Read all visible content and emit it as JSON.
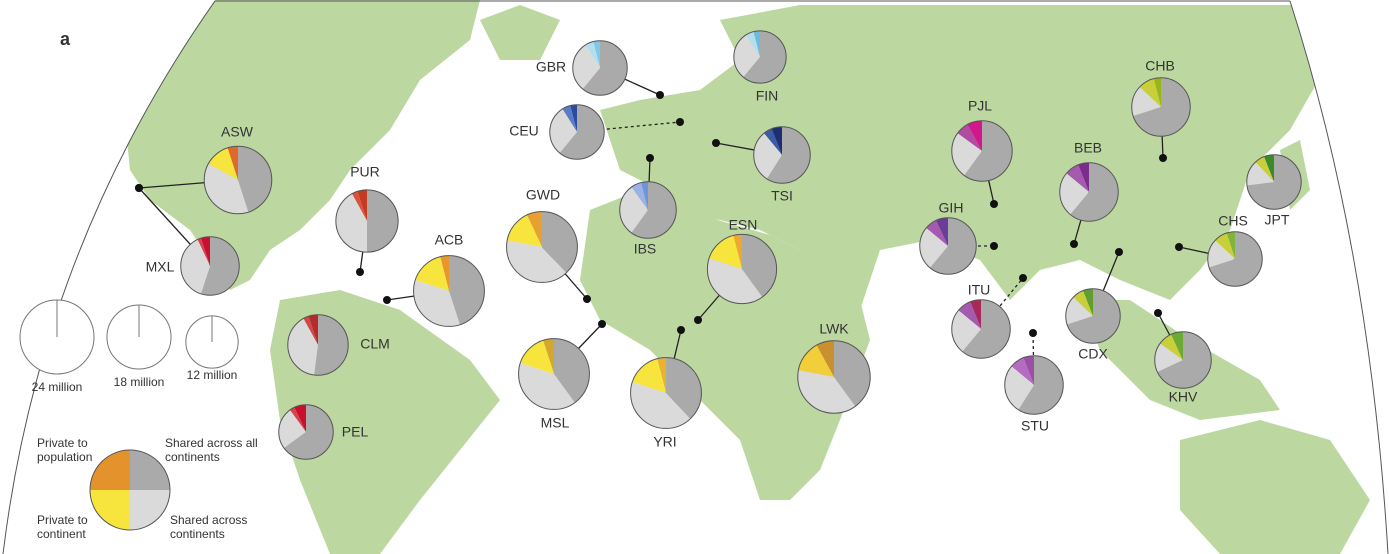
{
  "panel_label": "a",
  "size_legend": [
    {
      "value": 24,
      "label": "24 million"
    },
    {
      "value": 18,
      "label": "18 million"
    },
    {
      "value": 12,
      "label": "12 million"
    }
  ],
  "legend": {
    "labels": [
      "Private to population",
      "Private to continent",
      "Shared across continents",
      "Shared across all continents"
    ],
    "values": [
      25,
      25,
      25,
      25
    ],
    "colors": [
      "#e4922b",
      "#f7e43c",
      "#dadada",
      "#aaaaaa"
    ]
  },
  "populations": [
    {
      "label": "GBR",
      "size": 13,
      "values": [
        4,
        5,
        30,
        61
      ],
      "colors": [
        "#7fc9e6",
        "#b3def0",
        "#dadada",
        "#aaaaaa"
      ]
    },
    {
      "label": "FIN",
      "size": 12,
      "values": [
        4,
        5,
        30,
        61
      ],
      "colors": [
        "#6bbcdc",
        "#b3def0",
        "#dadada",
        "#aaaaaa"
      ]
    },
    {
      "label": "CEU",
      "size": 13,
      "values": [
        4,
        5,
        30,
        61
      ],
      "colors": [
        "#2a4b9e",
        "#5b7cc4",
        "#dadada",
        "#aaaaaa"
      ]
    },
    {
      "label": "IBS",
      "size": 14,
      "values": [
        4,
        6,
        30,
        60
      ],
      "colors": [
        "#6f94d8",
        "#9bb3e4",
        "#dadada",
        "#aaaaaa"
      ]
    },
    {
      "label": "TSI",
      "size": 14,
      "values": [
        6,
        5,
        30,
        59
      ],
      "colors": [
        "#1e2e70",
        "#3c5aa6",
        "#dadada",
        "#aaaaaa"
      ]
    },
    {
      "label": "GWD",
      "size": 22,
      "values": [
        7,
        15,
        40,
        38
      ],
      "colors": [
        "#e8a030",
        "#f7e43c",
        "#dadada",
        "#aaaaaa"
      ]
    },
    {
      "label": "MSL",
      "size": 22,
      "values": [
        5,
        15,
        40,
        40
      ],
      "colors": [
        "#d4a82c",
        "#f7e43c",
        "#dadada",
        "#aaaaaa"
      ]
    },
    {
      "label": "YRI",
      "size": 22,
      "values": [
        4,
        16,
        42,
        38
      ],
      "colors": [
        "#e9b22f",
        "#f7e43c",
        "#dadada",
        "#aaaaaa"
      ]
    },
    {
      "label": "ESN",
      "size": 21,
      "values": [
        4,
        16,
        40,
        40
      ],
      "colors": [
        "#eea733",
        "#f7e43c",
        "#dadada",
        "#aaaaaa"
      ]
    },
    {
      "label": "LWK",
      "size": 23,
      "values": [
        8,
        14,
        38,
        40
      ],
      "colors": [
        "#c8902e",
        "#f2cf3a",
        "#dadada",
        "#aaaaaa"
      ]
    },
    {
      "label": "ASW",
      "size": 20,
      "values": [
        5,
        12,
        38,
        45
      ],
      "colors": [
        "#e0682a",
        "#f7e43c",
        "#dadada",
        "#aaaaaa"
      ]
    },
    {
      "label": "PUR",
      "size": 17,
      "values": [
        5,
        3,
        42,
        50
      ],
      "colors": [
        "#c23b22",
        "#d9533a",
        "#dadada",
        "#aaaaaa"
      ]
    },
    {
      "label": "ACB",
      "size": 22,
      "values": [
        4,
        16,
        35,
        45
      ],
      "colors": [
        "#e8952b",
        "#f7e43c",
        "#dadada",
        "#aaaaaa"
      ]
    },
    {
      "label": "MXL",
      "size": 15,
      "values": [
        5,
        2,
        38,
        55
      ],
      "colors": [
        "#c8102e",
        "#d94050",
        "#dadada",
        "#aaaaaa"
      ]
    },
    {
      "label": "CLM",
      "size": 16,
      "values": [
        5,
        3,
        40,
        52
      ],
      "colors": [
        "#b52a2a",
        "#d04848",
        "#dadada",
        "#aaaaaa"
      ]
    },
    {
      "label": "PEL",
      "size": 13,
      "values": [
        7,
        3,
        25,
        65
      ],
      "colors": [
        "#c8102e",
        "#d94050",
        "#dadada",
        "#aaaaaa"
      ]
    },
    {
      "label": "PJL",
      "size": 16,
      "values": [
        8,
        7,
        25,
        60
      ],
      "colors": [
        "#d2168c",
        "#b24ba2",
        "#dadada",
        "#aaaaaa"
      ]
    },
    {
      "label": "GIH",
      "size": 14,
      "values": [
        7,
        7,
        25,
        61
      ],
      "colors": [
        "#6a3d9a",
        "#a55ab0",
        "#dadada",
        "#aaaaaa"
      ]
    },
    {
      "label": "ITU",
      "size": 15,
      "values": [
        6,
        8,
        25,
        61
      ],
      "colors": [
        "#a52a5a",
        "#a55ab0",
        "#dadada",
        "#aaaaaa"
      ]
    },
    {
      "label": "STU",
      "size": 15,
      "values": [
        6,
        8,
        27,
        59
      ],
      "colors": [
        "#9b4fa5",
        "#b36cbf",
        "#dadada",
        "#aaaaaa"
      ]
    },
    {
      "label": "BEB",
      "size": 15,
      "values": [
        6,
        8,
        25,
        61
      ],
      "colors": [
        "#7b2d8e",
        "#a55ab0",
        "#dadada",
        "#aaaaaa"
      ]
    },
    {
      "label": "CHB",
      "size": 15,
      "values": [
        4,
        9,
        17,
        70
      ],
      "colors": [
        "#9ab518",
        "#c8cf3a",
        "#dadada",
        "#aaaaaa"
      ]
    },
    {
      "label": "JPT",
      "size": 13,
      "values": [
        6,
        6,
        15,
        73
      ],
      "colors": [
        "#3a8a2a",
        "#c8cf3a",
        "#dadada",
        "#aaaaaa"
      ]
    },
    {
      "label": "CHS",
      "size": 13,
      "values": [
        5,
        8,
        17,
        70
      ],
      "colors": [
        "#7fb53a",
        "#c8cf3a",
        "#dadada",
        "#aaaaaa"
      ]
    },
    {
      "label": "CDX",
      "size": 13,
      "values": [
        6,
        7,
        17,
        70
      ],
      "colors": [
        "#5f9e2f",
        "#c8cf3a",
        "#dadada",
        "#aaaaaa"
      ]
    },
    {
      "label": "KHV",
      "size": 14,
      "values": [
        7,
        8,
        17,
        68
      ],
      "colors": [
        "#6aaa35",
        "#c8cf3a",
        "#dadada",
        "#aaaaaa"
      ]
    }
  ]
}
